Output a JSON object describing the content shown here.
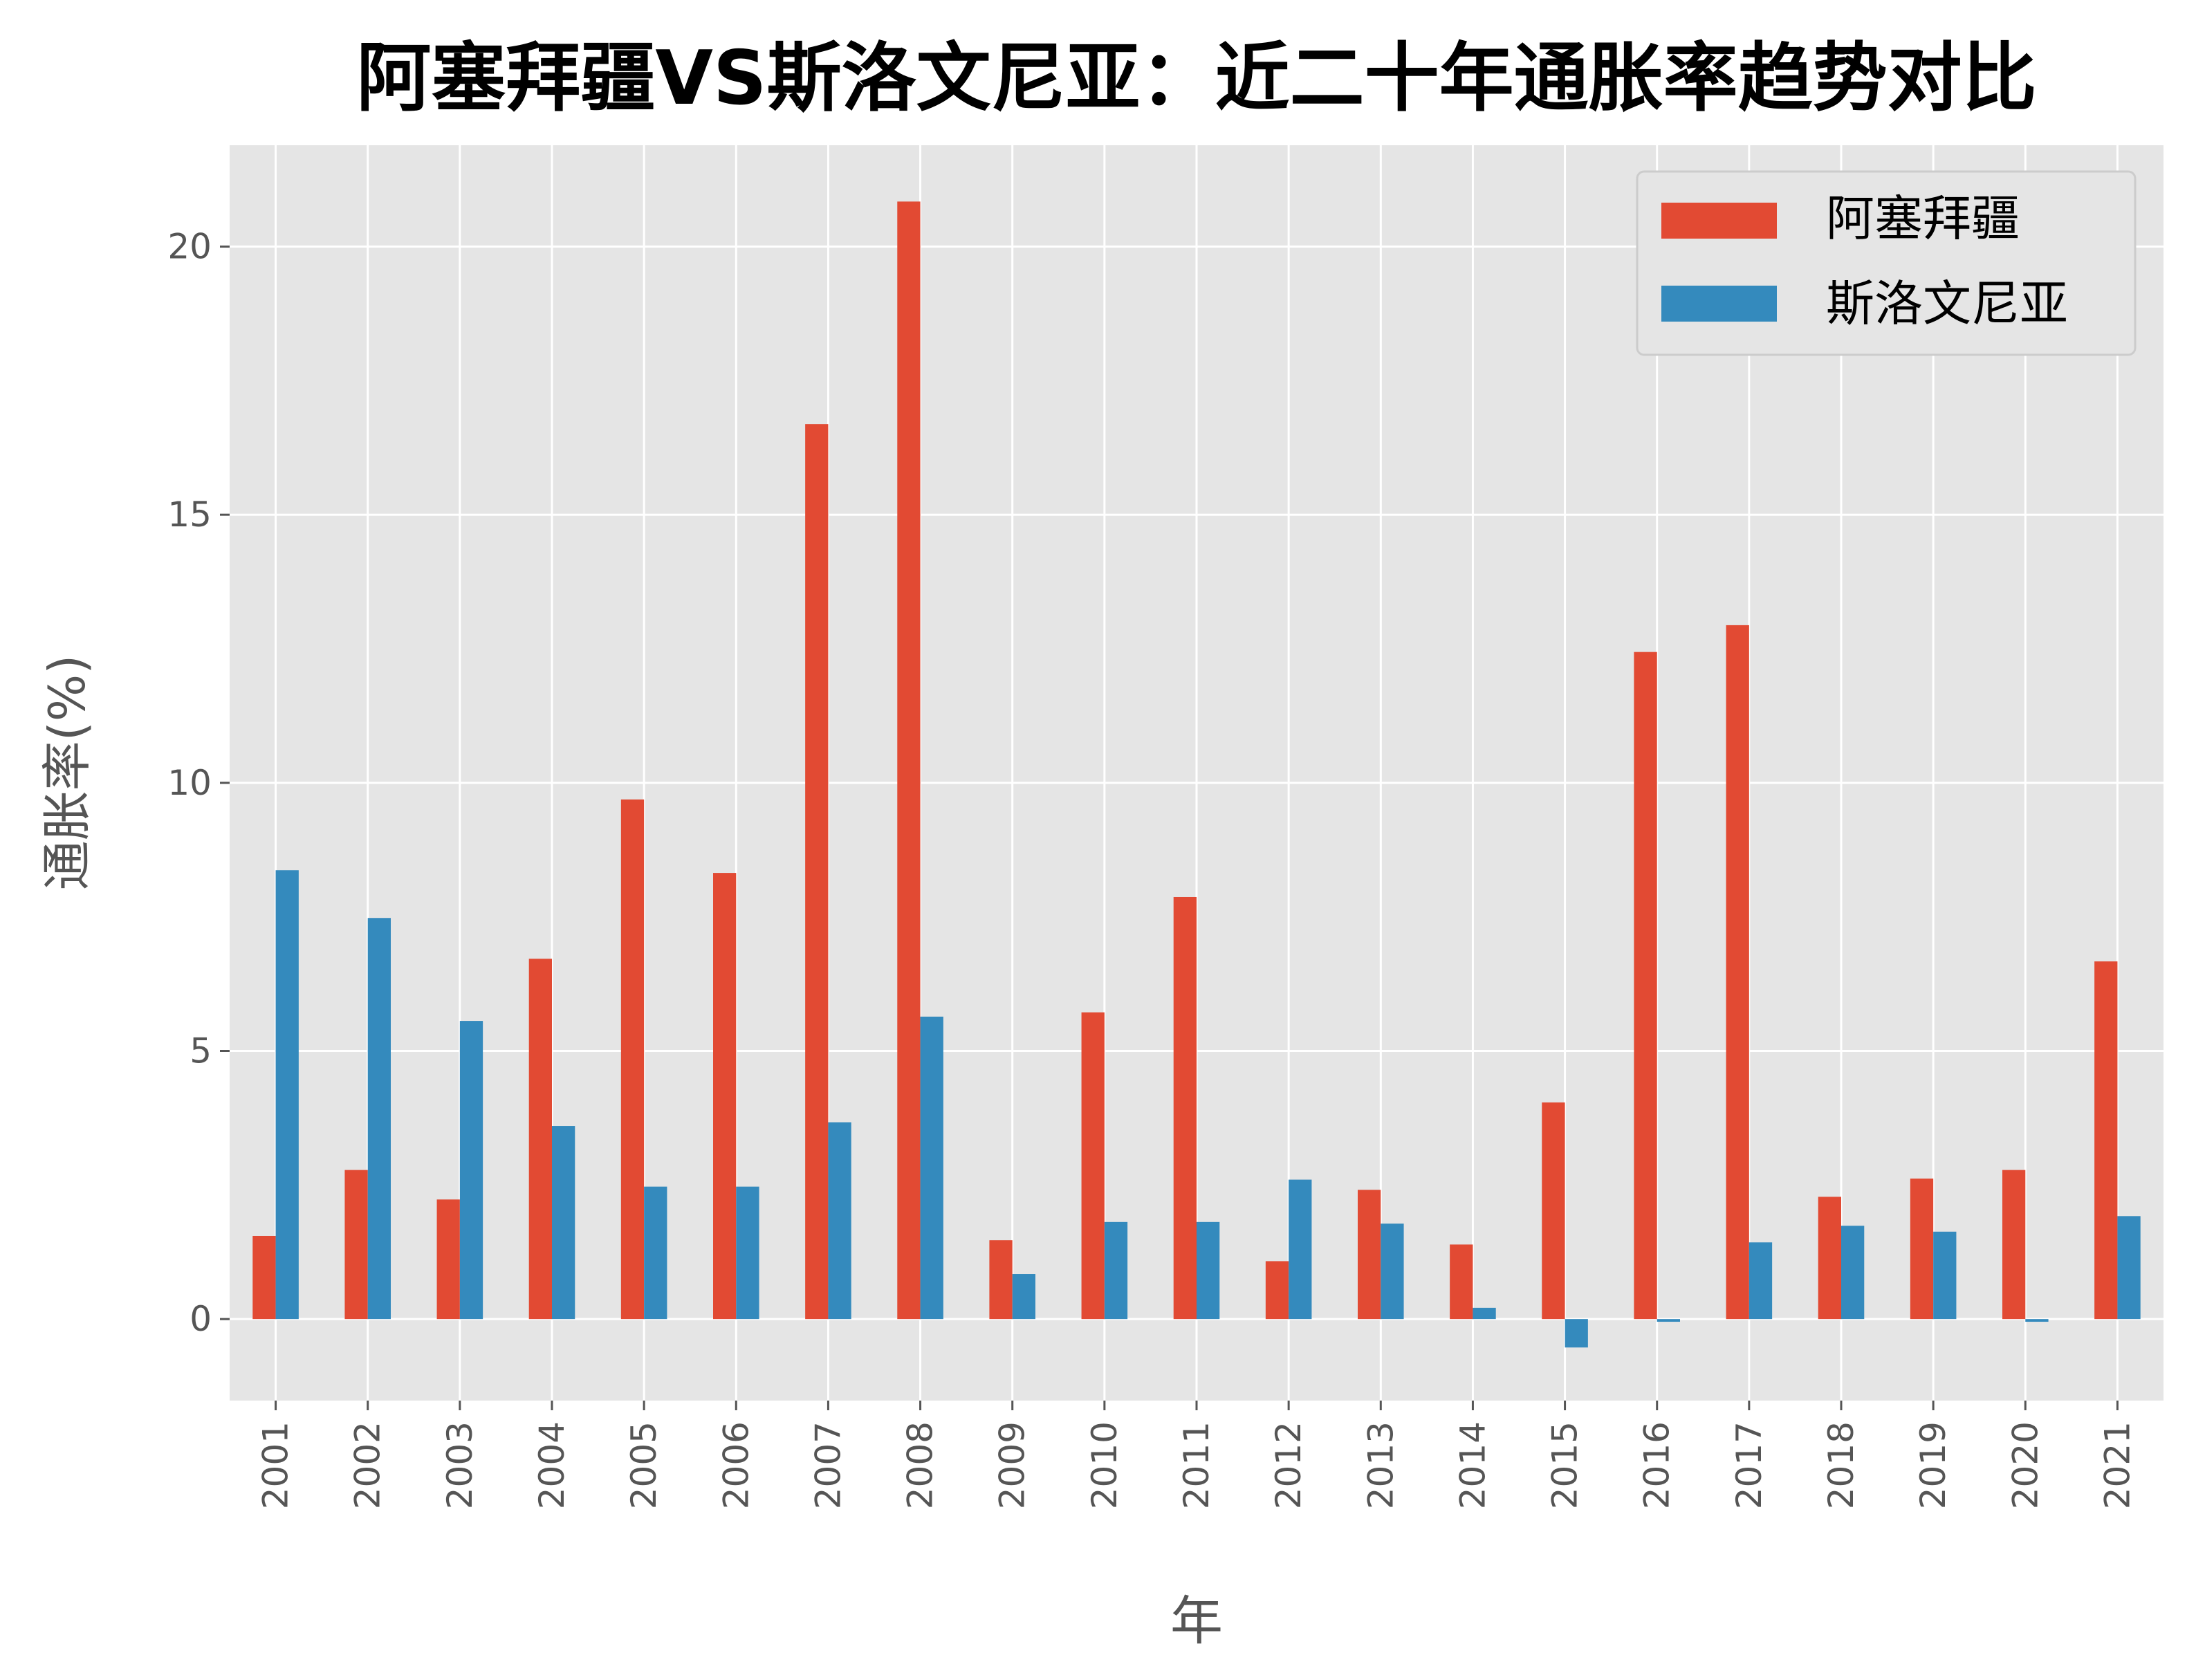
{
  "chart_data": {
    "type": "bar",
    "title": "阿塞拜疆VS斯洛文尼亚：近二十年通胀率趋势对比",
    "xlabel": "年",
    "ylabel": "通胀率(%)",
    "categories": [
      "2001",
      "2002",
      "2003",
      "2004",
      "2005",
      "2006",
      "2007",
      "2008",
      "2009",
      "2010",
      "2011",
      "2012",
      "2013",
      "2014",
      "2015",
      "2016",
      "2017",
      "2018",
      "2019",
      "2020",
      "2021"
    ],
    "series": [
      {
        "name": "阿塞拜疆",
        "color": "#E24A33",
        "values": [
          1.55,
          2.78,
          2.23,
          6.72,
          9.69,
          8.32,
          16.69,
          20.84,
          1.47,
          5.72,
          7.87,
          1.08,
          2.41,
          1.39,
          4.04,
          12.44,
          12.94,
          2.28,
          2.62,
          2.78,
          6.67
        ]
      },
      {
        "name": "斯洛文尼亚",
        "color": "#348ABD",
        "values": [
          8.37,
          7.48,
          5.56,
          3.6,
          2.47,
          2.47,
          3.67,
          5.64,
          0.84,
          1.81,
          1.81,
          2.6,
          1.78,
          0.21,
          -0.53,
          -0.05,
          1.43,
          1.74,
          1.63,
          -0.05,
          1.92
        ]
      }
    ],
    "yticks": [
      0,
      5,
      10,
      15,
      20
    ],
    "ylim": [
      -1.52,
      21.89
    ],
    "grid": true,
    "legend": "top-right",
    "background": "#E5E5E5"
  }
}
